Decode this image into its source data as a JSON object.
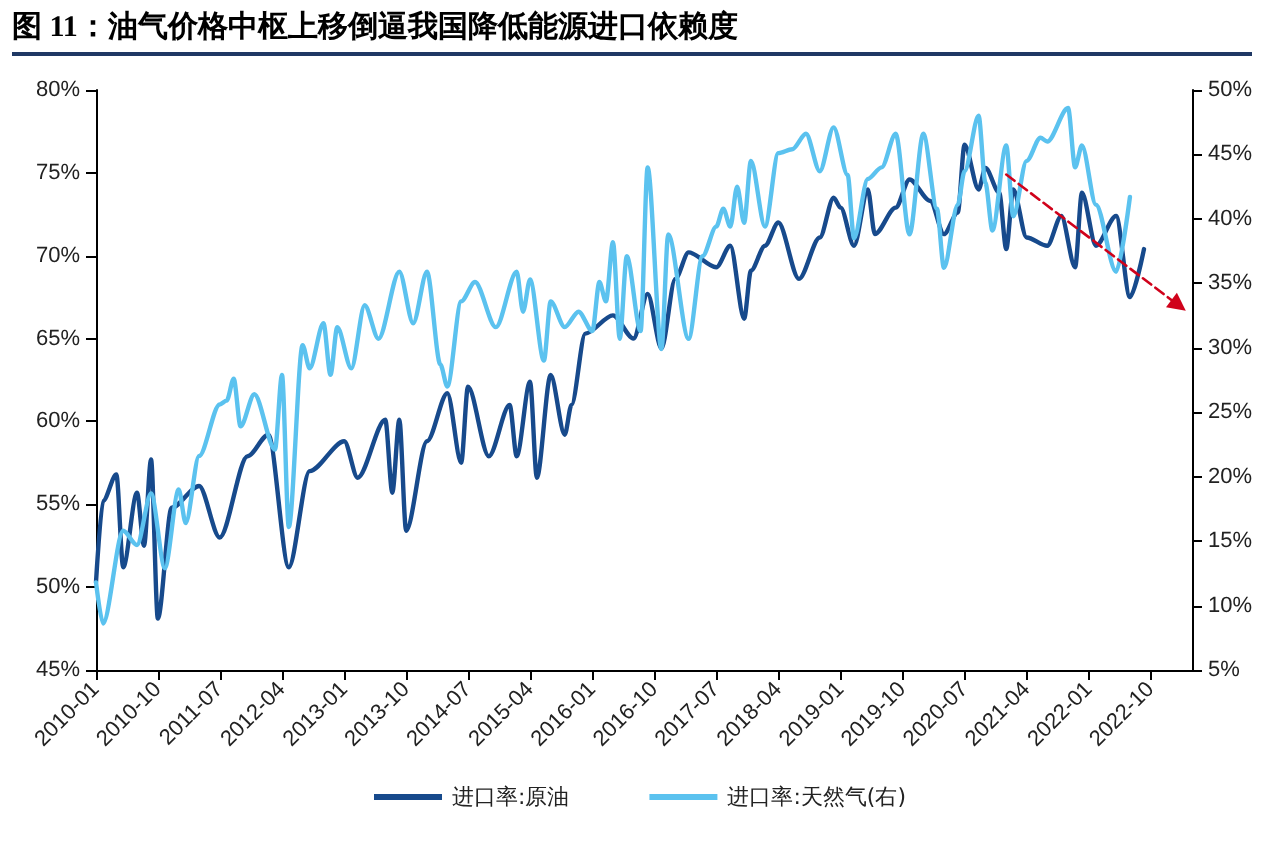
{
  "chart_data": {
    "type": "line",
    "title": "图 11：油气价格中枢上移倒逼我国降低能源进口依赖度",
    "xlim": [
      "2010-01",
      "2023-04"
    ],
    "xticks": [
      {
        "value": "2010-01",
        "label": "2010-01"
      },
      {
        "value": "2010-10",
        "label": "2010-10"
      },
      {
        "value": "2011-07",
        "label": "2011-07"
      },
      {
        "value": "2012-04",
        "label": "2012-04"
      },
      {
        "value": "2013-01",
        "label": "2013-01"
      },
      {
        "value": "2013-10",
        "label": "2013-10"
      },
      {
        "value": "2014-07",
        "label": "2014-07"
      },
      {
        "value": "2015-04",
        "label": "2015-04"
      },
      {
        "value": "2016-01",
        "label": "2016-01"
      },
      {
        "value": "2016-10",
        "label": "2016-10"
      },
      {
        "value": "2017-07",
        "label": "2017-07"
      },
      {
        "value": "2018-04",
        "label": "2018-04"
      },
      {
        "value": "2019-01",
        "label": "2019-01"
      },
      {
        "value": "2019-10",
        "label": "2019-10"
      },
      {
        "value": "2020-07",
        "label": "2020-07"
      },
      {
        "value": "2021-04",
        "label": "2021-04"
      },
      {
        "value": "2022-01",
        "label": "2022-01"
      },
      {
        "value": "2022-10",
        "label": "2022-10"
      }
    ],
    "ylim": [
      45,
      80
    ],
    "yticks": [
      {
        "value": 45,
        "label": "45%"
      },
      {
        "value": 50,
        "label": "50%"
      },
      {
        "value": 55,
        "label": "55%"
      },
      {
        "value": 60,
        "label": "60%"
      },
      {
        "value": 65,
        "label": "65%"
      },
      {
        "value": 70,
        "label": "70%"
      },
      {
        "value": 75,
        "label": "75%"
      },
      {
        "value": 80,
        "label": "80%"
      }
    ],
    "y2lim": [
      5,
      50
    ],
    "y2ticks": [
      {
        "value": 5,
        "label": "5%"
      },
      {
        "value": 10,
        "label": "10%"
      },
      {
        "value": 15,
        "label": "15%"
      },
      {
        "value": 20,
        "label": "20%"
      },
      {
        "value": 25,
        "label": "25%"
      },
      {
        "value": 30,
        "label": "30%"
      },
      {
        "value": 35,
        "label": "35%"
      },
      {
        "value": 40,
        "label": "40%"
      },
      {
        "value": 45,
        "label": "45%"
      },
      {
        "value": 50,
        "label": "50%"
      }
    ],
    "grid": false,
    "legend": "bottom",
    "marker": "none",
    "line_style": "solid",
    "series": [
      {
        "name": "进口率:原油",
        "color": "#174a8c",
        "x": [
          "2010-01",
          "2010-02",
          "2010-04",
          "2010-05",
          "2010-07",
          "2010-08",
          "2010-09",
          "2010-10",
          "2010-12",
          "2011-04",
          "2011-07",
          "2011-11",
          "2012-02",
          "2012-05",
          "2012-08",
          "2013-01",
          "2013-03",
          "2013-07",
          "2013-08",
          "2013-09",
          "2013-10",
          "2014-01",
          "2014-04",
          "2014-06",
          "2014-07",
          "2014-10",
          "2015-01",
          "2015-02",
          "2015-04",
          "2015-05",
          "2015-07",
          "2015-09",
          "2015-10",
          "2015-12",
          "2016-04",
          "2016-07",
          "2016-09",
          "2016-11",
          "2017-01",
          "2017-03",
          "2017-07",
          "2017-09",
          "2017-11",
          "2017-12",
          "2018-02",
          "2018-04",
          "2018-07",
          "2018-10",
          "2018-12",
          "2019-01",
          "2019-03",
          "2019-05",
          "2019-06",
          "2019-09",
          "2019-11",
          "2020-02",
          "2020-04",
          "2020-06",
          "2020-07",
          "2020-09",
          "2020-10",
          "2020-12",
          "2021-01",
          "2021-02",
          "2021-04",
          "2021-07",
          "2021-09",
          "2021-11",
          "2021-12",
          "2022-02",
          "2022-05",
          "2022-07",
          "2022-09"
        ],
        "values": [
          50.3,
          55.2,
          56.8,
          51.2,
          55.7,
          52.5,
          57.7,
          48.1,
          54.8,
          56.1,
          53.0,
          57.9,
          59.2,
          51.2,
          57.0,
          58.8,
          56.6,
          60.1,
          55.7,
          60.1,
          53.4,
          58.8,
          61.7,
          57.5,
          62.1,
          57.9,
          61.0,
          57.9,
          62.4,
          56.6,
          62.8,
          59.2,
          61.0,
          65.3,
          66.4,
          65.0,
          67.7,
          64.4,
          68.6,
          70.2,
          69.3,
          70.6,
          66.2,
          69.1,
          70.6,
          72.0,
          68.6,
          71.1,
          73.5,
          72.9,
          70.6,
          74.0,
          71.3,
          72.9,
          74.6,
          73.3,
          71.3,
          72.6,
          76.7,
          74.0,
          75.3,
          73.8,
          70.4,
          74.0,
          71.1,
          70.6,
          72.4,
          69.3,
          73.8,
          70.6,
          72.4,
          67.5,
          70.4
        ]
      },
      {
        "name": "进口率:天然气(右)",
        "color": "#5bc2ef",
        "axis": "y2",
        "x": [
          "2010-01",
          "2010-02",
          "2010-05",
          "2010-07",
          "2010-09",
          "2010-11",
          "2011-01",
          "2011-02",
          "2011-04",
          "2011-07",
          "2011-08",
          "2011-09",
          "2011-10",
          "2011-12",
          "2012-03",
          "2012-04",
          "2012-05",
          "2012-07",
          "2012-08",
          "2012-10",
          "2012-11",
          "2012-12",
          "2013-02",
          "2013-04",
          "2013-06",
          "2013-09",
          "2013-11",
          "2014-01",
          "2014-03",
          "2014-04",
          "2014-06",
          "2014-08",
          "2014-11",
          "2015-02",
          "2015-03",
          "2015-04",
          "2015-06",
          "2015-07",
          "2015-09",
          "2015-11",
          "2016-01",
          "2016-02",
          "2016-03",
          "2016-04",
          "2016-05",
          "2016-06",
          "2016-08",
          "2016-09",
          "2016-11",
          "2016-12",
          "2017-03",
          "2017-05",
          "2017-07",
          "2017-08",
          "2017-09",
          "2017-10",
          "2017-11",
          "2017-12",
          "2018-02",
          "2018-04",
          "2018-06",
          "2018-08",
          "2018-10",
          "2018-12",
          "2019-02",
          "2019-03",
          "2019-05",
          "2019-07",
          "2019-09",
          "2019-11",
          "2020-01",
          "2020-03",
          "2020-04",
          "2020-06",
          "2020-07",
          "2020-09",
          "2020-10",
          "2020-11",
          "2021-01",
          "2021-02",
          "2021-04",
          "2021-06",
          "2021-07",
          "2021-10",
          "2021-11",
          "2021-12",
          "2022-02",
          "2022-05",
          "2022-07"
        ],
        "values": [
          11.8,
          8.6,
          15.8,
          14.7,
          18.7,
          12.9,
          19.0,
          16.4,
          21.6,
          25.6,
          25.9,
          27.6,
          23.9,
          26.4,
          22.1,
          27.9,
          16.1,
          30.2,
          28.4,
          31.9,
          27.9,
          31.6,
          28.4,
          33.3,
          30.7,
          35.9,
          31.9,
          35.9,
          28.7,
          27.0,
          33.6,
          35.1,
          31.6,
          35.9,
          32.8,
          35.3,
          29.0,
          33.6,
          31.6,
          32.8,
          31.3,
          35.1,
          33.6,
          38.2,
          30.7,
          37.1,
          31.3,
          44.0,
          29.9,
          38.8,
          30.7,
          37.1,
          39.4,
          40.8,
          39.4,
          42.5,
          39.7,
          44.5,
          39.4,
          45.1,
          45.4,
          46.6,
          43.7,
          47.1,
          43.4,
          38.5,
          43.1,
          44.0,
          46.6,
          38.8,
          46.6,
          40.8,
          36.2,
          41.1,
          43.7,
          48.0,
          42.8,
          39.1,
          45.7,
          40.2,
          44.5,
          46.3,
          46.0,
          48.6,
          44.0,
          45.7,
          41.1,
          35.9,
          41.7
        ]
      },
      {
        "type": "line",
        "color": "#d0021b",
        "line_style": "dashed",
        "marker": "triangle",
        "x": [
          "2021-01",
          "2023-02"
        ],
        "values": [
          74.9,
          67.0
        ]
      }
    ]
  }
}
